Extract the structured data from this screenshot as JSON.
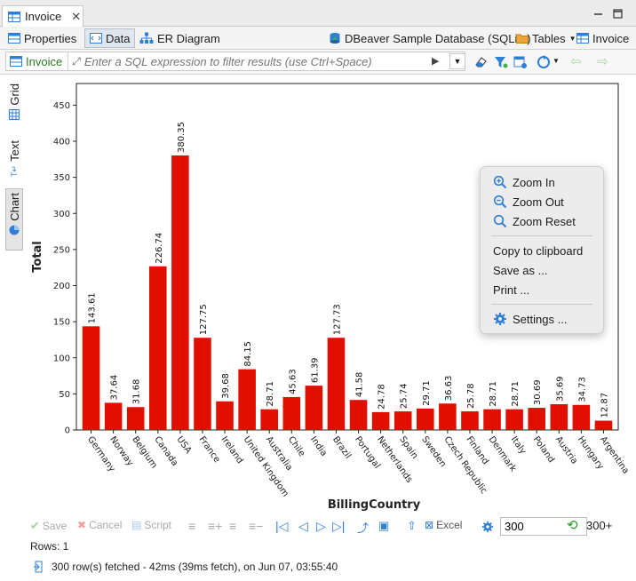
{
  "editor": {
    "tab_title": "Invoice"
  },
  "subtabs": {
    "properties": "Properties",
    "data": "Data",
    "er_diagram": "ER Diagram",
    "datasource": "DBeaver Sample Database (SQLite)",
    "tables": "Tables",
    "entity": "Invoice"
  },
  "filter": {
    "entity": "Invoice",
    "placeholder": "Enter a SQL expression to filter results (use Ctrl+Space)"
  },
  "side_tabs": {
    "grid": "Grid",
    "text": "Text",
    "chart": "Chart"
  },
  "chart_data": {
    "type": "bar",
    "xlabel": "BillingCountry",
    "ylabel": "Total",
    "ylim": [
      0,
      480
    ],
    "yticks": [
      0,
      50,
      100,
      150,
      200,
      250,
      300,
      350,
      400,
      450
    ],
    "bar_color": "#e00f00",
    "categories": [
      "Germany",
      "Norway",
      "Belgium",
      "Canada",
      "USA",
      "France",
      "Ireland",
      "United Kingdom",
      "Australia",
      "Chile",
      "India",
      "Brazil",
      "Portugal",
      "Netherlands",
      "Spain",
      "Sweden",
      "Czech Republic",
      "Finland",
      "Denmark",
      "Italy",
      "Poland",
      "Austria",
      "Hungary",
      "Argentina"
    ],
    "values": [
      143.61,
      37.64,
      31.68,
      226.74,
      380.35,
      127.75,
      39.68,
      84.15,
      28.71,
      45.63,
      61.39,
      127.73,
      41.58,
      24.78,
      25.74,
      29.71,
      36.63,
      25.78,
      28.71,
      28.71,
      30.69,
      35.69,
      34.73,
      12.87
    ],
    "value_labels": [
      "143.61",
      "37.64",
      "31.68",
      "226.74",
      "380.35",
      "127.75",
      "39.68",
      "84.15",
      "28.71",
      "45.63",
      "61.39",
      "127.73",
      "41.58",
      "24.78",
      "25.74",
      "29.71",
      "36.63",
      "25.78",
      "28.71",
      "28.71",
      "30.69",
      "35.69",
      "34.73",
      "12.87"
    ]
  },
  "context_menu": {
    "zoom_in": "Zoom In",
    "zoom_out": "Zoom Out",
    "zoom_reset": "Zoom Reset",
    "copy": "Copy to clipboard",
    "save_as": "Save as ...",
    "print": "Print ...",
    "settings": "Settings ..."
  },
  "bottom": {
    "save": "Save",
    "cancel": "Cancel",
    "script": "Script",
    "excel": "Excel",
    "fetch_size": "300",
    "fetch_more": "300+",
    "rows": "Rows: 1",
    "status": "300 row(s) fetched - 42ms (39ms fetch), on Jun 07, 03:55:40"
  },
  "colors": {
    "accent": "#2a7a22",
    "bar": "#e00f00",
    "link_blue": "#1f6fbf"
  }
}
